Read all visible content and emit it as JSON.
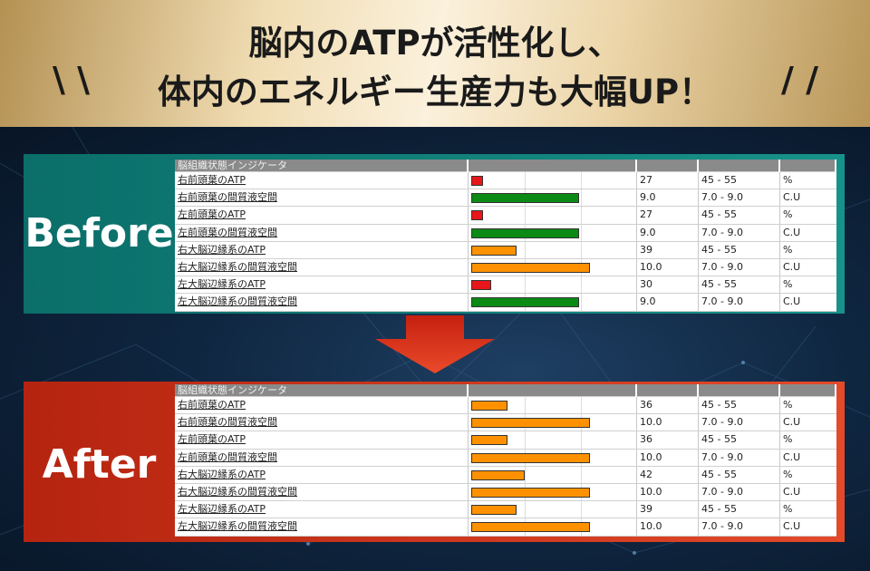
{
  "header": {
    "title_line1": "脳内のATPが活性化し、",
    "title_line2": "体内のエネルギー生産力も大幅UP！",
    "slash_left": "\\ \\",
    "slash_right": "/ /"
  },
  "colors": {
    "red": "#e8161a",
    "green": "#0b8a16",
    "orange": "#ff9100",
    "before_panel": "#13857e",
    "after_panel": "#d03a1e"
  },
  "table_header": "脳組織状態インジケータ",
  "before": {
    "label": "Before",
    "rows": [
      {
        "name": "右前頭葉のATP",
        "value": "27",
        "range": "45 - 55",
        "unit": "%",
        "level": 0.07,
        "color": "red"
      },
      {
        "name": "右前頭葉の間質液空間",
        "value": "9.0",
        "range": "7.0 - 9.0",
        "unit": "C.U",
        "level": 0.66,
        "color": "green"
      },
      {
        "name": "左前頭葉のATP",
        "value": "27",
        "range": "45 - 55",
        "unit": "%",
        "level": 0.07,
        "color": "red"
      },
      {
        "name": "左前頭葉の間質液空間",
        "value": "9.0",
        "range": "7.0 - 9.0",
        "unit": "C.U",
        "level": 0.66,
        "color": "green"
      },
      {
        "name": "右大脳辺縁系のATP",
        "value": "39",
        "range": "45 - 55",
        "unit": "%",
        "level": 0.28,
        "color": "orange"
      },
      {
        "name": "右大脳辺縁系の間質液空間",
        "value": "10.0",
        "range": "7.0 - 9.0",
        "unit": "C.U",
        "level": 0.73,
        "color": "orange"
      },
      {
        "name": "左大脳辺縁系のATP",
        "value": "30",
        "range": "45 - 55",
        "unit": "%",
        "level": 0.12,
        "color": "red"
      },
      {
        "name": "左大脳辺縁系の間質液空間",
        "value": "9.0",
        "range": "7.0 - 9.0",
        "unit": "C.U",
        "level": 0.66,
        "color": "green"
      }
    ]
  },
  "after": {
    "label": "After",
    "rows": [
      {
        "name": "右前頭葉のATP",
        "value": "36",
        "range": "45 - 55",
        "unit": "%",
        "level": 0.22,
        "color": "orange"
      },
      {
        "name": "右前頭葉の間質液空間",
        "value": "10.0",
        "range": "7.0 - 9.0",
        "unit": "C.U",
        "level": 0.73,
        "color": "orange"
      },
      {
        "name": "左前頭葉のATP",
        "value": "36",
        "range": "45 - 55",
        "unit": "%",
        "level": 0.22,
        "color": "orange"
      },
      {
        "name": "左前頭葉の間質液空間",
        "value": "10.0",
        "range": "7.0 - 9.0",
        "unit": "C.U",
        "level": 0.73,
        "color": "orange"
      },
      {
        "name": "右大脳辺縁系のATP",
        "value": "42",
        "range": "45 - 55",
        "unit": "%",
        "level": 0.33,
        "color": "orange"
      },
      {
        "name": "右大脳辺縁系の間質液空間",
        "value": "10.0",
        "range": "7.0 - 9.0",
        "unit": "C.U",
        "level": 0.73,
        "color": "orange"
      },
      {
        "name": "左大脳辺縁系のATP",
        "value": "39",
        "range": "45 - 55",
        "unit": "%",
        "level": 0.28,
        "color": "orange"
      },
      {
        "name": "左大脳辺縁系の間質液空間",
        "value": "10.0",
        "range": "7.0 - 9.0",
        "unit": "C.U",
        "level": 0.73,
        "color": "orange"
      }
    ]
  }
}
